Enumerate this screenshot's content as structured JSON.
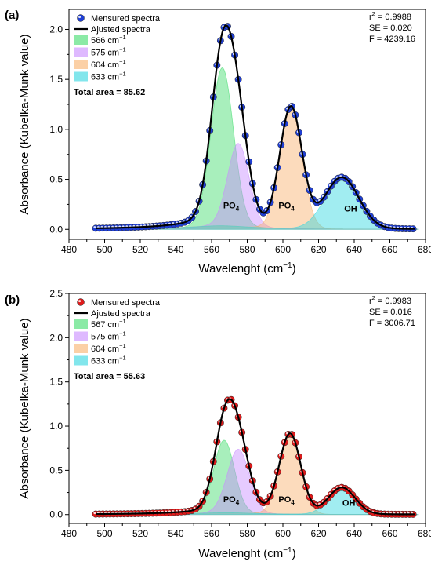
{
  "chart_data": [
    {
      "type": "area",
      "panel_label": "(a)",
      "xlabel": "Wavelenght (cm",
      "xlabel_sup": "−1",
      "xlabel_end": ")",
      "ylabel": "Absorbance (Kubelka-Munk value)",
      "xlim": [
        480,
        680
      ],
      "ylim": [
        -0.1,
        2.2
      ],
      "xticks": [
        480,
        500,
        520,
        540,
        560,
        580,
        600,
        620,
        640,
        660,
        680
      ],
      "yticks": [
        "0.0",
        "0.5",
        "1.0",
        "1.5",
        "2.0"
      ],
      "legend_position": "top-left",
      "legend": {
        "measured": "Mensured spectra",
        "adjusted": "Ajusted spectra",
        "components": [
          {
            "label": "566 cm",
            "sup": "−1",
            "color": "#3ddc6a"
          },
          {
            "label": "575 cm",
            "sup": "−1",
            "color": "#c88bff"
          },
          {
            "label": "604 cm",
            "sup": "−1",
            "color": "#f8b06b"
          },
          {
            "label": "633 cm",
            "sup": "−1",
            "color": "#2ed6e0"
          }
        ],
        "total_area": "Total area = 85.62"
      },
      "stats": {
        "r2_prefix": "r",
        "r2_sup": "2",
        "r2_value": " = 0.9988",
        "se": "SE = 0.020",
        "f": "F = 4239.16"
      },
      "band_labels": [
        {
          "text": "PO",
          "sub": "4",
          "x": 571,
          "y": 0.21
        },
        {
          "text": "PO",
          "sub": "4",
          "x": 602,
          "y": 0.21
        },
        {
          "text": "OH",
          "sub": "",
          "x": 638,
          "y": 0.18
        }
      ],
      "peaks": [
        {
          "center": 566,
          "height": 1.58,
          "sigma": 6.3,
          "color": "#3ddc6a"
        },
        {
          "center": 575,
          "height": 0.83,
          "sigma": 6.0,
          "color": "#c88bff"
        },
        {
          "center": 604.5,
          "height": 1.2,
          "sigma": 6.2,
          "color": "#f8b06b"
        },
        {
          "center": 633,
          "height": 0.51,
          "sigma": 9.5,
          "color": "#2ed6e0"
        }
      ],
      "baseline_tail": {
        "amp": 0.12,
        "center": 565,
        "gamma": 22
      },
      "series": [
        {
          "name": "Mensured spectra",
          "kind": "points",
          "color": "#1f3fd6",
          "x_start": 495,
          "x_end": 674,
          "step": 2
        },
        {
          "name": "Ajusted spectra",
          "kind": "line",
          "color": "#000000"
        }
      ]
    },
    {
      "type": "area",
      "panel_label": "(b)",
      "xlabel": "Wavelenght (cm",
      "xlabel_sup": "−1",
      "xlabel_end": ")",
      "ylabel": "Absorbance (Kubelka-Munk value)",
      "xlim": [
        480,
        680
      ],
      "ylim": [
        -0.1,
        2.5
      ],
      "xticks": [
        480,
        490,
        500,
        510,
        520,
        530,
        540,
        550,
        560,
        570,
        580,
        590,
        600,
        610,
        620,
        630,
        640,
        650,
        660,
        670,
        680
      ],
      "xticklabels_every": 2,
      "yticks": [
        "0.0",
        "0.5",
        "1.0",
        "1.5",
        "2.0",
        "2.5"
      ],
      "legend_position": "top-left",
      "legend": {
        "measured": "Mensured spectra",
        "adjusted": "Ajusted spectra",
        "components": [
          {
            "label": "567 cm",
            "sup": "−1",
            "color": "#3ddc6a"
          },
          {
            "label": "575 cm",
            "sup": "−1",
            "color": "#c88bff"
          },
          {
            "label": "604 cm",
            "sup": "−1",
            "color": "#f8b06b"
          },
          {
            "label": "633 cm",
            "sup": "−1",
            "color": "#2ed6e0"
          }
        ],
        "total_area": "Total area = 55.63"
      },
      "stats": {
        "r2_prefix": "r",
        "r2_sup": "2",
        "r2_value": " = 0.9983",
        "se": "SE = 0.016",
        "f": "F = 3006.71"
      },
      "band_labels": [
        {
          "text": "PO",
          "sub": "4",
          "x": 571,
          "y": 0.14
        },
        {
          "text": "PO",
          "sub": "4",
          "x": 602,
          "y": 0.14
        },
        {
          "text": "OH",
          "sub": "",
          "x": 637,
          "y": 0.1
        }
      ],
      "peaks": [
        {
          "center": 567,
          "height": 0.82,
          "sigma": 5.8,
          "color": "#3ddc6a"
        },
        {
          "center": 575,
          "height": 0.72,
          "sigma": 6.2,
          "color": "#c88bff"
        },
        {
          "center": 604,
          "height": 0.9,
          "sigma": 6.0,
          "color": "#f8b06b"
        },
        {
          "center": 633,
          "height": 0.3,
          "sigma": 7.5,
          "color": "#2ed6e0"
        }
      ],
      "baseline_tail": {
        "amp": 0.07,
        "center": 568,
        "gamma": 22
      },
      "series": [
        {
          "name": "Mensured spectra",
          "kind": "points",
          "color": "#e01a1a",
          "x_start": 495,
          "x_end": 674,
          "step": 2
        },
        {
          "name": "Ajusted spectra",
          "kind": "line",
          "color": "#000000"
        }
      ]
    }
  ]
}
